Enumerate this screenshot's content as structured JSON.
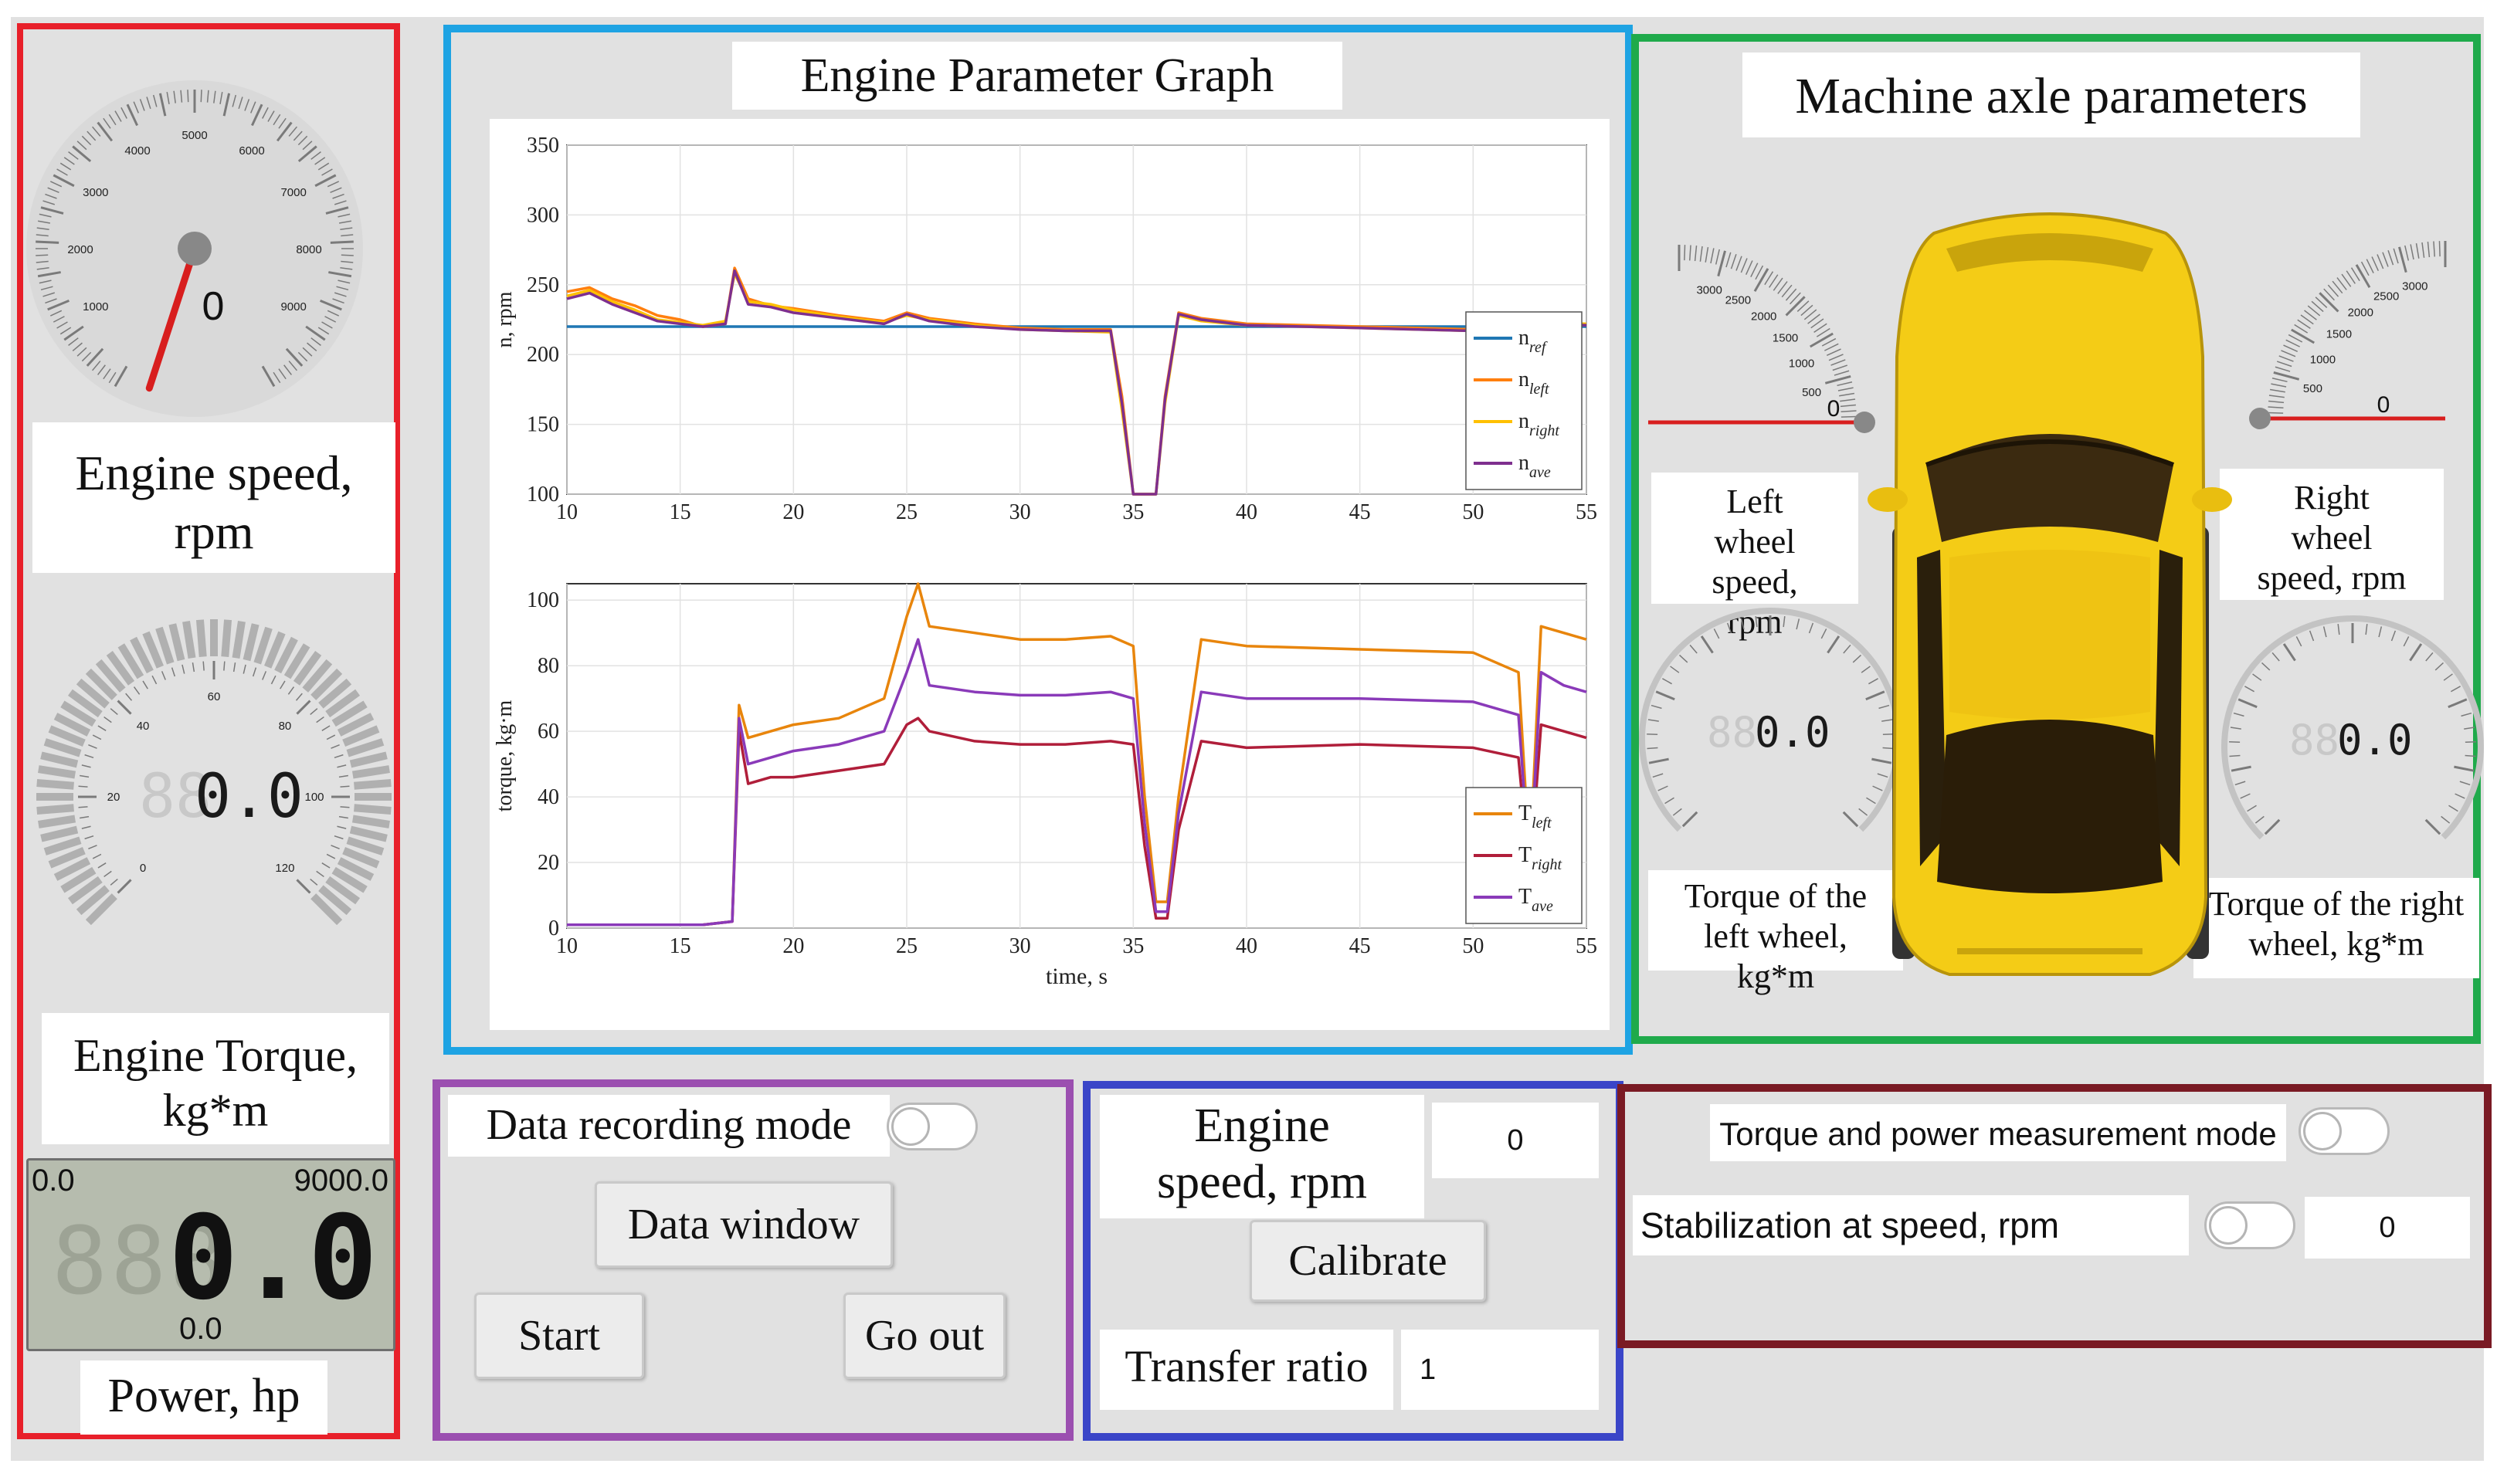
{
  "colors": {
    "left_panel": "#e8202a",
    "graph_panel": "#1ea3e3",
    "axle_panel": "#1faa4b",
    "record_panel": "#9b4fb0",
    "calib_panel": "#3a45c8",
    "torque_panel": "#7a1a24",
    "series_ref": "#1f77b4",
    "series_left": "#ff7f0e",
    "series_right": "#ffc000",
    "series_ave": "#7e2f8e",
    "torque_left": "#e8850c",
    "torque_right": "#b01e3a",
    "torque_ave": "#8a3ab9",
    "car_body": "#f4cc16",
    "needle": "#d81e1e"
  },
  "left_panel": {
    "engine_speed_gauge": {
      "ticks": [
        "1000",
        "2000",
        "3000",
        "4000",
        "5000",
        "6000",
        "7000",
        "8000",
        "9000"
      ],
      "value": "0",
      "icon": "speedometer-icon"
    },
    "engine_speed_label": "Engine speed, rpm",
    "torque_gauge": {
      "ticks": [
        "0",
        "20",
        "40",
        "60",
        "80",
        "100",
        "120"
      ],
      "value": "0.0",
      "ghost": "88",
      "icon": "torque-gauge-icon"
    },
    "engine_torque_label": "Engine  Torque, kg*m",
    "power_display": {
      "min": "0.0",
      "max": "9000.0",
      "value": "0.0",
      "bottom": "0.0",
      "icon": "lcd-display-icon"
    },
    "power_label": "Power, hp"
  },
  "graph": {
    "title": "Engine Parameter Graph",
    "chart_data": [
      {
        "type": "line",
        "ylabel": "n, rpm",
        "xlabel": "",
        "ylim": [
          100,
          350
        ],
        "xlim": [
          10,
          55
        ],
        "yticks": [
          "100",
          "150",
          "200",
          "250",
          "300",
          "350"
        ],
        "xticks": [
          "10",
          "15",
          "20",
          "25",
          "30",
          "35",
          "40",
          "45",
          "50",
          "55"
        ],
        "x": [
          10,
          11,
          12,
          13,
          14,
          15,
          16,
          17,
          17.4,
          18,
          19,
          20,
          22,
          24,
          25,
          26,
          28,
          30,
          32,
          34,
          34.5,
          35,
          35.5,
          36,
          36.4,
          37,
          38,
          40,
          45,
          50,
          52,
          53,
          55
        ],
        "series": [
          {
            "name": "n_ref",
            "values": [
              220,
              220,
              220,
              220,
              220,
              220,
              220,
              220,
              220,
              220,
              220,
              220,
              220,
              220,
              220,
              220,
              220,
              220,
              220,
              220,
              220,
              220,
              220,
              220,
              220,
              220,
              220,
              220,
              220,
              220,
              220,
              220,
              220
            ]
          },
          {
            "name": "n_left",
            "values": [
              245,
              248,
              240,
              235,
              228,
              225,
              220,
              222,
              262,
              240,
              235,
              233,
              228,
              224,
              230,
              226,
              222,
              219,
              218,
              218,
              170,
              100,
              100,
              100,
              170,
              230,
              226,
              222,
              220,
              218,
              219,
              222,
              221
            ]
          },
          {
            "name": "n_right",
            "values": [
              242,
              246,
              238,
              232,
              225,
              223,
              221,
              224,
              258,
              238,
              236,
              232,
              227,
              223,
              228,
              225,
              221,
              218,
              217,
              216,
              160,
              100,
              100,
              100,
              165,
              228,
              224,
              221,
              219,
              217,
              220,
              223,
              222
            ]
          },
          {
            "name": "n_ave",
            "values": [
              240,
              244,
              236,
              230,
              224,
              222,
              220,
              222,
              260,
              236,
              234,
              230,
              226,
              222,
              229,
              224,
              220,
              218,
              217,
              217,
              165,
              100,
              100,
              100,
              168,
              229,
              225,
              221,
              219,
              217,
              219,
              222,
              221
            ]
          }
        ],
        "legend": [
          "n_ref",
          "n_left",
          "n_right",
          "n_ave"
        ],
        "legend_position": "bottom-right"
      },
      {
        "type": "line",
        "ylabel": "torque, kg·m",
        "xlabel": "time, s",
        "ylim": [
          0,
          105
        ],
        "yticks": [
          "0",
          "20",
          "40",
          "60",
          "80",
          "100"
        ],
        "xticks": [
          "10",
          "15",
          "20",
          "25",
          "30",
          "35",
          "40",
          "45",
          "50",
          "55"
        ],
        "x": [
          10,
          12,
          14,
          16,
          17.3,
          17.6,
          18,
          19,
          20,
          22,
          24,
          25,
          25.5,
          26,
          28,
          30,
          32,
          34,
          35,
          35.5,
          36,
          36.5,
          37,
          38,
          40,
          45,
          50,
          52,
          52.5,
          53,
          54,
          55
        ],
        "series": [
          {
            "name": "T_left",
            "values": [
              1,
              1,
              1,
              1,
              2,
              68,
              58,
              60,
              62,
              64,
              70,
              95,
              105,
              92,
              90,
              88,
              88,
              89,
              86,
              40,
              8,
              8,
              40,
              88,
              86,
              85,
              84,
              78,
              20,
              92,
              90,
              88
            ]
          },
          {
            "name": "T_right",
            "values": [
              1,
              1,
              1,
              1,
              2,
              60,
              44,
              46,
              46,
              48,
              50,
              62,
              64,
              60,
              57,
              56,
              56,
              57,
              56,
              25,
              3,
              3,
              30,
              57,
              55,
              56,
              55,
              52,
              15,
              62,
              60,
              58
            ]
          },
          {
            "name": "T_ave",
            "values": [
              1,
              1,
              1,
              1,
              2,
              64,
              50,
              52,
              54,
              56,
              60,
              78,
              88,
              74,
              72,
              71,
              71,
              72,
              70,
              32,
              5,
              5,
              35,
              72,
              70,
              70,
              69,
              65,
              18,
              78,
              74,
              72
            ]
          }
        ],
        "legend": [
          "T_left",
          "T_right",
          "T_ave"
        ],
        "legend_position": "bottom-right"
      }
    ]
  },
  "axle": {
    "title": "Machine axle parameters",
    "left_speed_gauge": {
      "ticks": [
        "500",
        "1000",
        "1500",
        "2000",
        "2500",
        "3000"
      ],
      "value": "0",
      "icon": "speed-gauge-icon"
    },
    "right_speed_gauge": {
      "ticks": [
        "500",
        "1000",
        "1500",
        "2000",
        "2500",
        "3000"
      ],
      "value": "0",
      "icon": "speed-gauge-icon"
    },
    "left_speed_label": "Left wheel speed, rpm",
    "right_speed_label": "Right wheel speed, rpm",
    "left_torque_gauge": {
      "value": "0.0",
      "ghost": "88",
      "icon": "torque-gauge-icon"
    },
    "right_torque_gauge": {
      "value": "0.0",
      "ghost": "88",
      "icon": "torque-gauge-icon"
    },
    "left_torque_label": "Torque  of the left wheel, kg*m",
    "right_torque_label": "Torque   of the right wheel, kg*m",
    "car_icon": "car-top-view-icon"
  },
  "recording": {
    "mode_label": "Data recording mode",
    "data_window": "Data window",
    "start": "Start",
    "go_out": "Go out"
  },
  "calibration": {
    "engine_speed_label": "Engine speed, rpm",
    "engine_speed_value": "0",
    "calibrate": "Calibrate",
    "transfer_ratio_label": "Transfer ratio",
    "transfer_ratio_value": "1"
  },
  "torque_mode": {
    "mode_label": "Torque and power measurement mode",
    "stabilization_label": "Stabilization at speed, rpm",
    "stabilization_value": "0"
  }
}
